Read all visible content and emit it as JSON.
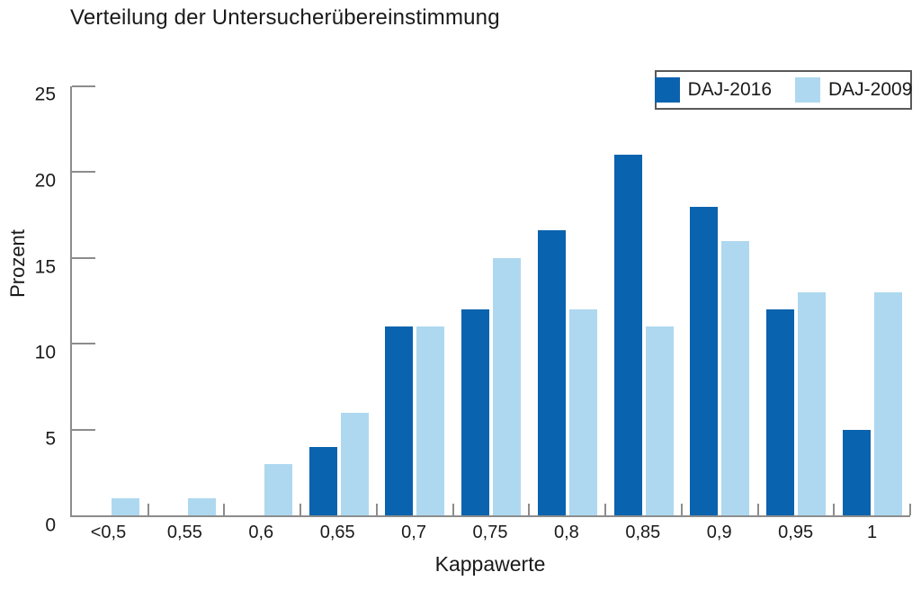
{
  "title": "Verteilung der Untersucherübereinstimmung",
  "chart_data": {
    "type": "bar",
    "categories": [
      "<0,5",
      "0,55",
      "0,6",
      "0,65",
      "0,7",
      "0,75",
      "0,8",
      "0,85",
      "0,9",
      "0,95",
      "1"
    ],
    "series": [
      {
        "name": "DAJ-2016",
        "color": "#0a63ae",
        "values": [
          0,
          0,
          0,
          4,
          11,
          12,
          16.6,
          21,
          18,
          12,
          5
        ]
      },
      {
        "name": "DAJ-2009",
        "color": "#aed8f0",
        "values": [
          1,
          1,
          3,
          6,
          11,
          15,
          12,
          11,
          16,
          13,
          13
        ]
      }
    ],
    "title": "Verteilung der Untersucherübereinstimmung",
    "xlabel": "Kappawerte",
    "ylabel": "Prozent",
    "ylim": [
      0,
      25
    ],
    "yticks": [
      0,
      5,
      10,
      15,
      20,
      25
    ],
    "grid": false,
    "legend_position": "top-right"
  },
  "colors": {
    "axis": "#8c8c8c",
    "text": "#1a1a1a",
    "legend_border": "#595959",
    "background": "#ffffff"
  }
}
